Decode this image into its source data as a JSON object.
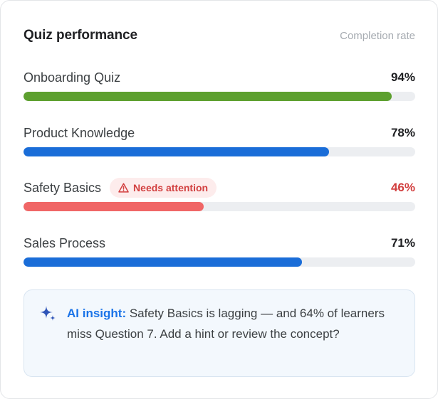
{
  "card": {
    "title": "Quiz performance",
    "subtitle": "Completion rate"
  },
  "quizzes": [
    {
      "name": "Onboarding Quiz",
      "value_label": "94%",
      "percent": 94,
      "color": "#5da02f",
      "badge": null
    },
    {
      "name": "Product Knowledge",
      "value_label": "78%",
      "percent": 78,
      "color": "#1a6dd8",
      "badge": null
    },
    {
      "name": "Safety Basics",
      "value_label": "46%",
      "percent": 46,
      "color": "#f06666",
      "badge": {
        "label": "Needs attention",
        "icon": "warning-icon"
      }
    },
    {
      "name": "Sales Process",
      "value_label": "71%",
      "percent": 71,
      "color": "#1a6dd8",
      "badge": null
    }
  ],
  "insight": {
    "icon": "sparkle-icon",
    "label": "AI insight:",
    "text": "Safety Basics is lagging — and 64% of learners miss Question 7. Add a hint or review the concept?"
  },
  "colors": {
    "track": "#eceef1",
    "alert": "#d23f3f",
    "accent": "#1a73e8"
  }
}
